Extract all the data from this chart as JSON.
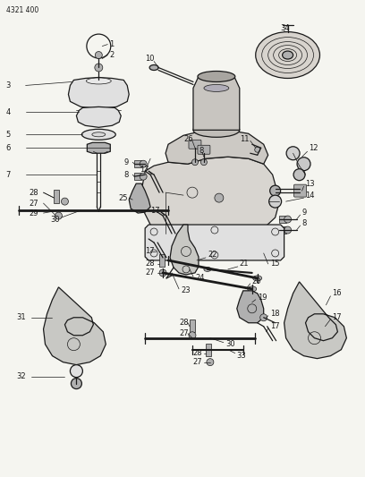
{
  "page_id": "4321 400",
  "bg_color": "#f5f5f0",
  "line_color": "#1a1a1a",
  "figsize": [
    4.08,
    5.33
  ],
  "dpi": 100,
  "label_fs": 6.0,
  "lw_main": 0.9,
  "lw_thin": 0.5,
  "gray_fill": "#c8c8c8",
  "gray_light": "#e0e0e0",
  "gray_mid": "#b0b0b0"
}
